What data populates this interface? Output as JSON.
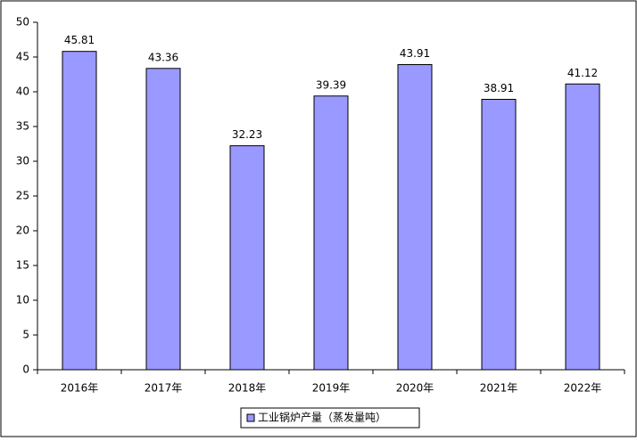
{
  "chart_data": {
    "type": "bar",
    "categories": [
      "2016年",
      "2017年",
      "2018年",
      "2019年",
      "2020年",
      "2021年",
      "2022年"
    ],
    "series": [
      {
        "name": "工业锅炉产量（蒸发量吨）",
        "color": "#9999ff",
        "values": [
          45.81,
          43.36,
          32.23,
          39.39,
          43.91,
          38.91,
          41.12
        ]
      }
    ],
    "ylim": [
      0,
      50
    ],
    "yticks": [
      0,
      5,
      10,
      15,
      20,
      25,
      30,
      35,
      40,
      45,
      50
    ],
    "grid": false,
    "legend": "bottom"
  }
}
